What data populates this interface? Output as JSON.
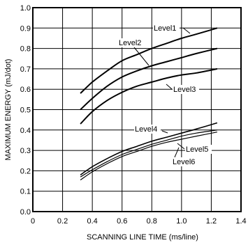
{
  "chart_data": {
    "type": "line",
    "xlabel": "SCANNING  LINE  TIME (ms/line)",
    "ylabel": "MAXIMUM  ENERGY (mJ/dot)",
    "xlim": [
      0,
      1.4
    ],
    "ylim": [
      0.0,
      1.0
    ],
    "x_ticks": [
      "0",
      "0.2",
      "0.4",
      "0.6",
      "0.8",
      "1.0",
      "1.2",
      "1.4"
    ],
    "y_ticks": [
      "0.0",
      "0.1",
      "0.2",
      "0.3",
      "0.4",
      "0.5",
      "0.6",
      "0.7",
      "0.8",
      "0.9",
      "1.0"
    ],
    "grid": true,
    "x": [
      0.32,
      0.4,
      0.5,
      0.6,
      0.7,
      0.8,
      0.9,
      1.0,
      1.1,
      1.24
    ],
    "series": [
      {
        "name": "Level1",
        "values": [
          0.58,
          0.635,
          0.69,
          0.74,
          0.77,
          0.8,
          0.825,
          0.85,
          0.87,
          0.9
        ]
      },
      {
        "name": "Level2",
        "values": [
          0.5,
          0.555,
          0.615,
          0.66,
          0.69,
          0.715,
          0.735,
          0.755,
          0.775,
          0.8
        ]
      },
      {
        "name": "Level3",
        "values": [
          0.43,
          0.49,
          0.545,
          0.585,
          0.615,
          0.635,
          0.655,
          0.67,
          0.68,
          0.7
        ]
      },
      {
        "name": "Level4",
        "values": [
          0.18,
          0.22,
          0.26,
          0.295,
          0.32,
          0.345,
          0.365,
          0.385,
          0.405,
          0.435
        ]
      },
      {
        "name": "Level5",
        "values": [
          0.17,
          0.205,
          0.245,
          0.28,
          0.305,
          0.33,
          0.35,
          0.37,
          0.385,
          0.4
        ]
      },
      {
        "name": "Level6",
        "values": [
          0.155,
          0.195,
          0.235,
          0.27,
          0.295,
          0.32,
          0.34,
          0.355,
          0.37,
          0.39
        ]
      }
    ],
    "annotations": [
      {
        "series": "Level1",
        "text": "Level1"
      },
      {
        "series": "Level2",
        "text": "Level2"
      },
      {
        "series": "Level3",
        "text": "Level3"
      },
      {
        "series": "Level4",
        "text": "Level4"
      },
      {
        "series": "Level5",
        "text": "Level5"
      },
      {
        "series": "Level6",
        "text": "Level6"
      }
    ]
  }
}
